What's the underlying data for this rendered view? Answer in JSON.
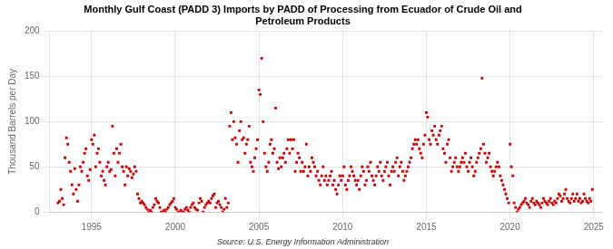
{
  "chart_data": {
    "type": "scatter",
    "title": "Monthly Gulf Coast (PADD 3) Imports by PADD of Processing from Ecuador of Crude Oil and\nPetroleum Products",
    "subtitle": "Source: U.S. Energy Information Administration",
    "ylabel": "Thousand Barrels per Day",
    "color": "#cc0000",
    "marker": "square",
    "grid": true,
    "xlim": [
      1992.5,
      2025.5
    ],
    "ylim": [
      0,
      200
    ],
    "xticks": [
      1995,
      2000,
      2005,
      2010,
      2015,
      2020,
      2025
    ],
    "yticks": [
      0,
      50,
      100,
      150,
      200
    ],
    "x": [
      1993.0,
      1993.083,
      1993.167,
      1993.25,
      1993.333,
      1993.417,
      1993.5,
      1993.583,
      1993.667,
      1993.75,
      1993.833,
      1993.917,
      1994.0,
      1994.083,
      1994.167,
      1994.25,
      1994.333,
      1994.417,
      1994.5,
      1994.583,
      1994.667,
      1994.75,
      1994.833,
      1994.917,
      1995.0,
      1995.083,
      1995.167,
      1995.25,
      1995.333,
      1995.417,
      1995.5,
      1995.583,
      1995.667,
      1995.75,
      1995.833,
      1995.917,
      1996.0,
      1996.083,
      1996.167,
      1996.25,
      1996.333,
      1996.417,
      1996.5,
      1996.583,
      1996.667,
      1996.75,
      1996.833,
      1996.917,
      1997.0,
      1997.083,
      1997.167,
      1997.25,
      1997.333,
      1997.417,
      1997.5,
      1997.583,
      1997.667,
      1997.75,
      1997.833,
      1997.917,
      1998.0,
      1998.083,
      1998.167,
      1998.25,
      1998.333,
      1998.417,
      1998.5,
      1998.583,
      1998.667,
      1998.75,
      1998.833,
      1998.917,
      1999.0,
      1999.083,
      1999.167,
      1999.25,
      1999.333,
      1999.417,
      1999.5,
      1999.583,
      1999.667,
      1999.75,
      1999.833,
      1999.917,
      2000.0,
      2000.083,
      2000.167,
      2000.25,
      2000.333,
      2000.417,
      2000.5,
      2000.583,
      2000.667,
      2000.75,
      2000.833,
      2000.917,
      2001.0,
      2001.083,
      2001.167,
      2001.25,
      2001.333,
      2001.417,
      2001.5,
      2001.583,
      2001.667,
      2001.75,
      2001.833,
      2001.917,
      2002.0,
      2002.083,
      2002.167,
      2002.25,
      2002.333,
      2002.417,
      2002.5,
      2002.583,
      2002.667,
      2002.75,
      2002.833,
      2002.917,
      2003.0,
      2003.083,
      2003.167,
      2003.25,
      2003.333,
      2003.417,
      2003.5,
      2003.583,
      2003.667,
      2003.75,
      2003.833,
      2003.917,
      2004.0,
      2004.083,
      2004.167,
      2004.25,
      2004.333,
      2004.417,
      2004.5,
      2004.583,
      2004.667,
      2004.75,
      2004.833,
      2004.917,
      2005.0,
      2005.083,
      2005.167,
      2005.25,
      2005.333,
      2005.417,
      2005.5,
      2005.583,
      2005.667,
      2005.75,
      2005.833,
      2005.917,
      2006.0,
      2006.083,
      2006.167,
      2006.25,
      2006.333,
      2006.417,
      2006.5,
      2006.583,
      2006.667,
      2006.75,
      2006.833,
      2006.917,
      2007.0,
      2007.083,
      2007.167,
      2007.25,
      2007.333,
      2007.417,
      2007.5,
      2007.583,
      2007.667,
      2007.75,
      2007.833,
      2007.917,
      2008.0,
      2008.083,
      2008.167,
      2008.25,
      2008.333,
      2008.417,
      2008.5,
      2008.583,
      2008.667,
      2008.75,
      2008.833,
      2008.917,
      2009.0,
      2009.083,
      2009.167,
      2009.25,
      2009.333,
      2009.417,
      2009.5,
      2009.583,
      2009.667,
      2009.75,
      2009.833,
      2009.917,
      2010.0,
      2010.083,
      2010.167,
      2010.25,
      2010.333,
      2010.417,
      2010.5,
      2010.583,
      2010.667,
      2010.75,
      2010.833,
      2010.917,
      2011.0,
      2011.083,
      2011.167,
      2011.25,
      2011.333,
      2011.417,
      2011.5,
      2011.583,
      2011.667,
      2011.75,
      2011.833,
      2011.917,
      2012.0,
      2012.083,
      2012.167,
      2012.25,
      2012.333,
      2012.417,
      2012.5,
      2012.583,
      2012.667,
      2012.75,
      2012.833,
      2012.917,
      2013.0,
      2013.083,
      2013.167,
      2013.25,
      2013.333,
      2013.417,
      2013.5,
      2013.583,
      2013.667,
      2013.75,
      2013.833,
      2013.917,
      2014.0,
      2014.083,
      2014.167,
      2014.25,
      2014.333,
      2014.417,
      2014.5,
      2014.583,
      2014.667,
      2014.75,
      2014.833,
      2014.917,
      2015.0,
      2015.083,
      2015.167,
      2015.25,
      2015.333,
      2015.417,
      2015.5,
      2015.583,
      2015.667,
      2015.75,
      2015.833,
      2015.917,
      2016.0,
      2016.083,
      2016.167,
      2016.25,
      2016.333,
      2016.417,
      2016.5,
      2016.583,
      2016.667,
      2016.75,
      2016.833,
      2016.917,
      2017.0,
      2017.083,
      2017.167,
      2017.25,
      2017.333,
      2017.417,
      2017.5,
      2017.583,
      2017.667,
      2017.75,
      2017.833,
      2017.917,
      2018.0,
      2018.083,
      2018.167,
      2018.25,
      2018.333,
      2018.417,
      2018.5,
      2018.583,
      2018.667,
      2018.75,
      2018.833,
      2018.917,
      2019.0,
      2019.083,
      2019.167,
      2019.25,
      2019.333,
      2019.417,
      2019.5,
      2019.583,
      2019.667,
      2019.75,
      2019.833,
      2019.917,
      2020.0,
      2020.083,
      2020.167,
      2020.25,
      2020.333,
      2020.417,
      2020.5,
      2020.583,
      2020.667,
      2020.75,
      2020.833,
      2020.917,
      2021.0,
      2021.083,
      2021.167,
      2021.25,
      2021.333,
      2021.417,
      2021.5,
      2021.583,
      2021.667,
      2021.75,
      2021.833,
      2021.917,
      2022.0,
      2022.083,
      2022.167,
      2022.25,
      2022.333,
      2022.417,
      2022.5,
      2022.583,
      2022.667,
      2022.75,
      2022.833,
      2022.917,
      2023.0,
      2023.083,
      2023.167,
      2023.25,
      2023.333,
      2023.417,
      2023.5,
      2023.583,
      2023.667,
      2023.75,
      2023.833,
      2023.917,
      2024.0,
      2024.083,
      2024.167,
      2024.25,
      2024.333,
      2024.417,
      2024.5,
      2024.583,
      2024.667,
      2024.75,
      2024.833,
      2024.917
    ],
    "values": [
      10,
      12,
      25,
      15,
      8,
      60,
      82,
      75,
      55,
      45,
      30,
      20,
      48,
      25,
      12,
      30,
      50,
      45,
      55,
      65,
      70,
      40,
      35,
      47,
      80,
      75,
      85,
      50,
      65,
      70,
      55,
      40,
      45,
      35,
      30,
      50,
      55,
      45,
      47,
      95,
      65,
      40,
      70,
      55,
      65,
      75,
      50,
      45,
      30,
      50,
      40,
      48,
      45,
      38,
      42,
      50,
      45,
      20,
      15,
      10,
      12,
      10,
      8,
      5,
      3,
      0,
      2,
      0,
      5,
      8,
      15,
      12,
      10,
      5,
      0,
      0,
      2,
      0,
      3,
      5,
      8,
      10,
      12,
      15,
      5,
      3,
      0,
      0,
      2,
      0,
      0,
      3,
      5,
      2,
      0,
      5,
      8,
      10,
      5,
      3,
      2,
      10,
      15,
      12,
      0,
      5,
      8,
      10,
      12,
      10,
      15,
      18,
      20,
      5,
      10,
      12,
      8,
      5,
      0,
      3,
      15,
      5,
      10,
      95,
      110,
      80,
      100,
      82,
      75,
      55,
      90,
      100,
      80,
      82,
      65,
      75,
      80,
      95,
      55,
      50,
      45,
      60,
      70,
      80,
      135,
      130,
      170,
      100,
      65,
      50,
      45,
      55,
      75,
      80,
      65,
      70,
      115,
      55,
      48,
      60,
      50,
      60,
      65,
      55,
      70,
      80,
      65,
      80,
      70,
      80,
      45,
      55,
      65,
      60,
      45,
      55,
      45,
      50,
      75,
      40,
      50,
      45,
      60,
      55,
      50,
      40,
      45,
      35,
      30,
      40,
      50,
      35,
      40,
      30,
      35,
      40,
      45,
      30,
      35,
      25,
      20,
      30,
      40,
      35,
      40,
      50,
      30,
      25,
      35,
      40,
      50,
      45,
      40,
      35,
      30,
      35,
      25,
      40,
      50,
      45,
      30,
      35,
      50,
      45,
      55,
      40,
      35,
      30,
      40,
      50,
      45,
      55,
      40,
      35,
      45,
      50,
      55,
      40,
      30,
      45,
      50,
      45,
      55,
      60,
      40,
      50,
      55,
      45,
      35,
      40,
      45,
      50,
      55,
      60,
      70,
      75,
      80,
      75,
      80,
      70,
      65,
      60,
      75,
      85,
      110,
      105,
      80,
      75,
      90,
      85,
      95,
      80,
      75,
      85,
      90,
      95,
      70,
      65,
      55,
      75,
      80,
      60,
      45,
      50,
      55,
      60,
      50,
      45,
      50,
      55,
      60,
      55,
      65,
      50,
      45,
      55,
      60,
      50,
      40,
      45,
      55,
      60,
      65,
      70,
      148,
      75,
      65,
      55,
      60,
      65,
      50,
      45,
      40,
      45,
      50,
      55,
      50,
      40,
      35,
      30,
      25,
      20,
      15,
      10,
      75,
      50,
      40,
      10,
      5,
      0,
      3,
      5,
      8,
      10,
      12,
      15,
      10,
      8,
      5,
      12,
      15,
      10,
      8,
      12,
      10,
      8,
      5,
      10,
      15,
      12,
      10,
      8,
      12,
      15,
      10,
      8,
      12,
      10,
      15,
      20,
      18,
      12,
      15,
      20,
      25,
      15,
      12,
      10,
      15,
      20,
      12,
      15,
      20,
      12,
      15,
      10,
      12,
      20,
      15,
      12,
      10,
      15,
      12,
      25
    ]
  }
}
